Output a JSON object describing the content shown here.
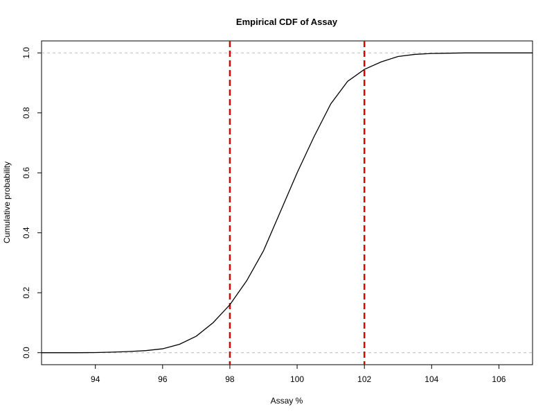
{
  "chart_data": {
    "type": "line",
    "title": "Empirical CDF of Assay",
    "xlabel": "Assay %",
    "ylabel": "Cumulative probability",
    "xlim": [
      92.4,
      107.0
    ],
    "ylim": [
      -0.04,
      1.04
    ],
    "x_ticks": [
      94,
      96,
      98,
      100,
      102,
      104,
      106
    ],
    "y_ticks": [
      0.0,
      0.2,
      0.4,
      0.6,
      0.8,
      1.0
    ],
    "series": [
      {
        "color": "#000000",
        "x": [
          92.4,
          93.0,
          93.5,
          94.0,
          94.5,
          95.0,
          95.5,
          96.0,
          96.5,
          97.0,
          97.5,
          98.0,
          98.5,
          99.0,
          99.5,
          100.0,
          100.5,
          101.0,
          101.5,
          102.0,
          102.5,
          103.0,
          103.5,
          104.0,
          105.0,
          106.0,
          107.0
        ],
        "y": [
          0.0,
          0.0,
          0.0,
          0.0005,
          0.002,
          0.004,
          0.007,
          0.013,
          0.028,
          0.055,
          0.1,
          0.16,
          0.24,
          0.34,
          0.47,
          0.6,
          0.72,
          0.83,
          0.905,
          0.945,
          0.97,
          0.988,
          0.995,
          0.998,
          1.0,
          1.0,
          1.0
        ]
      }
    ],
    "reference_lines": {
      "vertical": [
        {
          "x": 98,
          "color": "#dd0000",
          "style": "dashed"
        },
        {
          "x": 102,
          "color": "#dd0000",
          "style": "dashed"
        }
      ],
      "horizontal": [
        {
          "y": 0,
          "color": "#bbbbbb",
          "style": "dashed"
        },
        {
          "y": 1,
          "color": "#bbbbbb",
          "style": "dashed"
        }
      ]
    },
    "grid": false,
    "legend": "none"
  }
}
